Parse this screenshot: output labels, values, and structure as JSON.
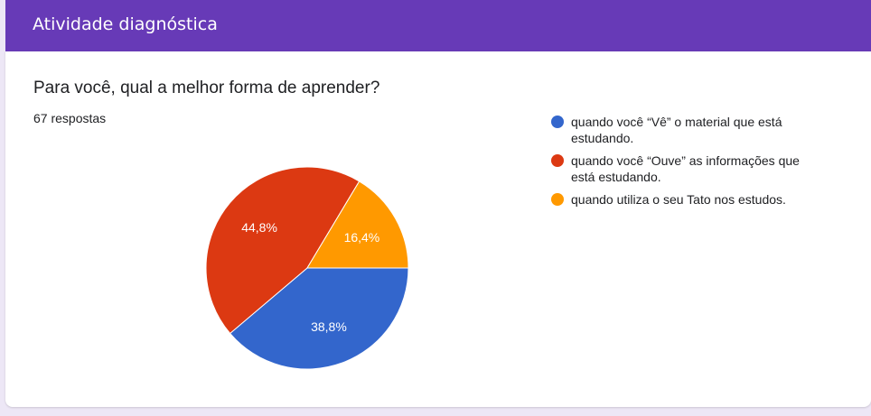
{
  "header": {
    "title": "Atividade diagnóstica"
  },
  "question": {
    "title": "Para você, qual a melhor forma de aprender?",
    "responses": "67 respostas"
  },
  "chart_data": {
    "type": "pie",
    "slices": [
      {
        "label": "quando você “Vê” o material que está estudando.",
        "value": 38.8,
        "value_label": "38,8%",
        "color": "#3366cc"
      },
      {
        "label": "quando você “Ouve” as informações que está estudando.",
        "value": 44.8,
        "value_label": "44,8%",
        "color": "#dc3912"
      },
      {
        "label": "quando utiliza o seu Tato nos estudos.",
        "value": 16.4,
        "value_label": "16,4%",
        "color": "#ff9900"
      }
    ],
    "legend_position": "right"
  }
}
